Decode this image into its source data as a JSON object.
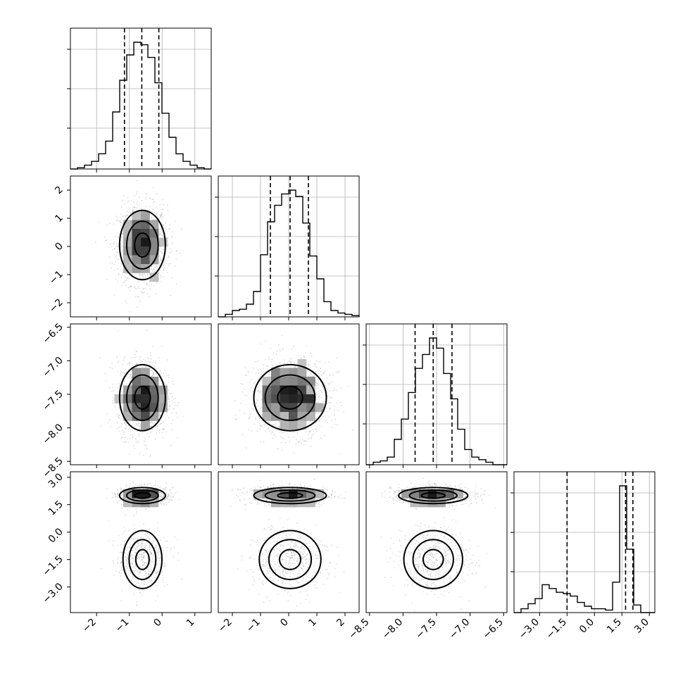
{
  "chart_data": {
    "type": "corner",
    "params": [
      {
        "range": [
          -2.8,
          1.5
        ],
        "ticks": [
          -2,
          -1,
          0,
          1
        ],
        "tick_labels": [
          "−2",
          "−1",
          "0",
          "1"
        ],
        "mean": -0.6,
        "sd": 0.38,
        "quantiles": [
          -1.15,
          -0.62,
          -0.1
        ]
      },
      {
        "range": [
          -2.5,
          2.5
        ],
        "ticks": [
          -2,
          -1,
          0,
          1,
          2
        ],
        "tick_labels": [
          "−2",
          "−1",
          "0",
          "1",
          "2"
        ],
        "mean": 0.05,
        "sd": 0.7,
        "quantiles": [
          -0.65,
          0.05,
          0.7
        ]
      },
      {
        "range": [
          -8.55,
          -6.45
        ],
        "ticks": [
          -8.5,
          -8.0,
          -7.5,
          -7.0,
          -6.5
        ],
        "tick_labels": [
          "−8.5",
          "−8.0",
          "−7.5",
          "−7.0",
          "−6.5"
        ],
        "mean": -7.55,
        "sd": 0.28,
        "quantiles": [
          -7.82,
          -7.55,
          -7.27
        ]
      },
      {
        "range": [
          -4.4,
          3.3
        ],
        "ticks": [
          -3.0,
          -1.5,
          0.0,
          1.5,
          3.0
        ],
        "tick_labels": [
          "−3.0",
          "−1.5",
          "0.0",
          "1.5",
          "3.0"
        ],
        "bimodal": [
          {
            "weight": 0.35,
            "mean": -1.5,
            "sd": 0.9
          },
          {
            "weight": 0.65,
            "mean": 2.0,
            "sd": 0.25
          }
        ],
        "quantiles": [
          -1.5,
          1.7,
          2.1
        ]
      }
    ],
    "diag_hist_max": [
      [
        0.0,
        0.01,
        0.03,
        0.06,
        0.12,
        0.22,
        0.45,
        0.7,
        0.9,
        1.0,
        0.98,
        0.88,
        0.68,
        0.44,
        0.25,
        0.12,
        0.06,
        0.03,
        0.01,
        0.0
      ],
      [
        0.0,
        0.02,
        0.05,
        0.06,
        0.1,
        0.2,
        0.49,
        0.75,
        0.88,
        0.97,
        1.0,
        0.95,
        0.74,
        0.48,
        0.3,
        0.12,
        0.05,
        0.03,
        0.02,
        0.01
      ],
      [
        0.0,
        0.02,
        0.03,
        0.06,
        0.2,
        0.36,
        0.57,
        0.76,
        0.87,
        1.0,
        0.92,
        0.72,
        0.52,
        0.28,
        0.12,
        0.06,
        0.04,
        0.02,
        0.0,
        0.0
      ],
      [
        0.0,
        0.03,
        0.07,
        0.11,
        0.22,
        0.19,
        0.16,
        0.15,
        0.13,
        0.08,
        0.05,
        0.03,
        0.03,
        0.02,
        0.24,
        1.0,
        0.5,
        0.06,
        0.0,
        0.0
      ]
    ]
  }
}
